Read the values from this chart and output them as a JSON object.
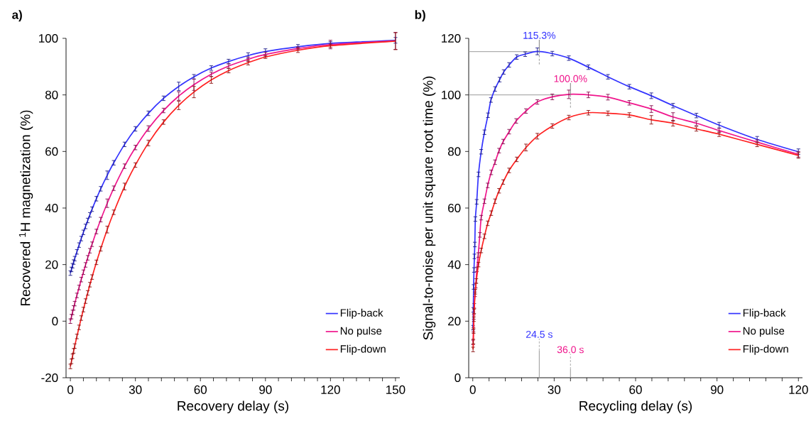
{
  "chart_data": [
    {
      "type": "line",
      "title": "a)",
      "xlabel": "Recovery delay (s)",
      "ylabel": "Recovered $^{1}$H magnetization (%)",
      "legend": "bottom right",
      "xlim": [
        -2,
        152
      ],
      "ylim": [
        -20,
        100
      ],
      "xticks": [
        0,
        {
          "value": 6,
          "label": null
        },
        {
          "value": 12,
          "label": null
        },
        {
          "value": 18,
          "label": null
        },
        {
          "value": 24,
          "label": null
        },
        30,
        {
          "value": 36,
          "label": null
        },
        {
          "value": 42,
          "label": null
        },
        {
          "value": 48,
          "label": null
        },
        {
          "value": 54,
          "label": null
        },
        60,
        {
          "value": 66,
          "label": null
        },
        {
          "value": 72,
          "label": null
        },
        {
          "value": 78,
          "label": null
        },
        {
          "value": 84,
          "label": null
        },
        90,
        {
          "value": 96,
          "label": null
        },
        {
          "value": 102,
          "label": null
        },
        {
          "value": 108,
          "label": null
        },
        {
          "value": 114,
          "label": null
        },
        120,
        {
          "value": 126,
          "label": null
        },
        {
          "value": 132,
          "label": null
        },
        {
          "value": 138,
          "label": null
        },
        {
          "value": 144,
          "label": null
        },
        150
      ],
      "yticks": [
        -20,
        0,
        20,
        40,
        60,
        80,
        100
      ],
      "series": [
        {
          "name": "Flip-back",
          "color": "#3333ff",
          "x": [
            0,
            0.5,
            1,
            1.5,
            2,
            3,
            4,
            5,
            6,
            7,
            8,
            9,
            10,
            12,
            14,
            17,
            20,
            25,
            30,
            36,
            43,
            50,
            57,
            65,
            73,
            82,
            90,
            105,
            120,
            150
          ],
          "values": [
            17.0,
            18.3,
            19.6,
            20.9,
            22.1,
            24.5,
            26.9,
            29.2,
            31.4,
            33.5,
            35.6,
            37.6,
            39.6,
            43.3,
            46.8,
            51.6,
            56.0,
            62.5,
            68.0,
            73.5,
            78.8,
            83.0,
            86.4,
            89.5,
            91.8,
            93.9,
            95.3,
            97.0,
            98.2,
            99.3
          ],
          "errors": [
            0.8,
            0.8,
            0.8,
            0.8,
            0.8,
            0.8,
            0.8,
            0.8,
            0.8,
            0.8,
            0.8,
            0.8,
            0.8,
            0.8,
            0.8,
            1.5,
            0.8,
            0.8,
            0.8,
            0.8,
            0.8,
            1.5,
            0.8,
            0.8,
            0.8,
            1.0,
            1.0,
            0.8,
            0.6,
            1.0
          ]
        },
        {
          "name": "No pulse",
          "color": "#f0158c",
          "x": [
            0,
            0.5,
            1,
            1.5,
            2,
            3,
            4,
            5,
            6,
            7,
            8,
            9,
            10,
            12,
            14,
            17,
            20,
            25,
            30,
            36,
            43,
            50,
            57,
            65,
            73,
            82,
            90,
            105,
            120,
            150
          ],
          "values": [
            0.0,
            1.6,
            3.1,
            4.7,
            6.2,
            9.1,
            11.9,
            14.7,
            17.3,
            19.9,
            22.4,
            24.9,
            27.2,
            31.7,
            35.9,
            41.7,
            47.0,
            54.8,
            61.4,
            68.1,
            74.5,
            79.6,
            83.6,
            87.3,
            90.2,
            92.6,
            94.3,
            96.4,
            97.8,
            99.1
          ],
          "errors": [
            0.8,
            0.8,
            0.8,
            0.8,
            0.8,
            0.8,
            0.8,
            0.8,
            0.8,
            0.8,
            0.8,
            0.8,
            0.8,
            0.8,
            0.8,
            1.5,
            0.8,
            0.8,
            0.8,
            1.0,
            0.8,
            1.5,
            2.0,
            0.8,
            0.8,
            0.8,
            0.8,
            0.6,
            1.5,
            3.0
          ]
        },
        {
          "name": "Flip-down",
          "color": "#ff2020",
          "x": [
            0,
            0.5,
            1,
            1.5,
            2,
            3,
            4,
            5,
            6,
            7,
            8,
            9,
            10,
            12,
            14,
            17,
            20,
            25,
            30,
            36,
            43,
            50,
            57,
            65,
            73,
            82,
            90,
            105,
            120,
            150
          ],
          "values": [
            -16.0,
            -14.2,
            -12.4,
            -10.5,
            -8.8,
            -5.4,
            -2.2,
            1.1,
            4.1,
            7.1,
            10.0,
            12.9,
            15.6,
            20.8,
            25.6,
            32.4,
            38.5,
            47.6,
            55.2,
            63.0,
            70.4,
            76.3,
            81.0,
            85.3,
            88.6,
            91.4,
            93.4,
            95.8,
            97.4,
            99.0
          ],
          "errors": [
            0.8,
            0.8,
            0.8,
            0.8,
            0.8,
            0.8,
            0.8,
            0.8,
            0.8,
            0.8,
            0.8,
            0.8,
            0.8,
            0.8,
            0.8,
            1.2,
            0.8,
            1.2,
            0.8,
            1.0,
            0.8,
            1.5,
            2.0,
            1.2,
            0.8,
            0.8,
            0.5,
            0.8,
            0.6,
            3.0
          ]
        }
      ]
    },
    {
      "type": "line",
      "title": "b)",
      "xlabel": "Recycling delay (s)",
      "ylabel": "Signal-to-noise per unit square root time (%)",
      "legend": "bottom right",
      "xlim": [
        -1.5,
        121.5
      ],
      "ylim": [
        0,
        120
      ],
      "xticks": [
        0,
        {
          "value": 6,
          "label": null
        },
        {
          "value": 12,
          "label": null
        },
        {
          "value": 18,
          "label": null
        },
        {
          "value": 24,
          "label": null
        },
        30,
        {
          "value": 36,
          "label": null
        },
        {
          "value": 42,
          "label": null
        },
        {
          "value": 48,
          "label": null
        },
        {
          "value": 54,
          "label": null
        },
        60,
        {
          "value": 66,
          "label": null
        },
        {
          "value": 72,
          "label": null
        },
        {
          "value": 78,
          "label": null
        },
        {
          "value": 84,
          "label": null
        },
        90,
        {
          "value": 96,
          "label": null
        },
        {
          "value": 102,
          "label": null
        },
        {
          "value": 108,
          "label": null
        },
        {
          "value": 114,
          "label": null
        },
        120
      ],
      "yticks": [
        0,
        20,
        40,
        60,
        80,
        100,
        120
      ],
      "annotations": [
        {
          "text": "115.3%",
          "x": 24.5,
          "y": 115.3
        },
        {
          "text": "100.0%",
          "x": 36.0,
          "y": 100.0
        }
      ],
      "ref_lines": [
        {
          "axis": "y",
          "value": 115.3,
          "color": "#999999"
        },
        {
          "axis": "y",
          "value": 100.0,
          "color": "#999999"
        },
        {
          "axis": "x",
          "value": 24.5,
          "label": "24.5 s",
          "color": "#999999"
        },
        {
          "axis": "x",
          "value": 36.0,
          "label": "36.0 s",
          "color": "#999999"
        }
      ],
      "series": [
        {
          "name": "Flip-back",
          "color": "#3333ff",
          "x": [
            0.1,
            0.2,
            0.3,
            0.45,
            0.6,
            0.75,
            0.95,
            1.45,
            2.1,
            3.1,
            4.3,
            5.6,
            6.7,
            8.2,
            9.9,
            11.4,
            13.4,
            16.2,
            19.3,
            23.8,
            29.3,
            35.4,
            42.6,
            49.8,
            57.7,
            65.8,
            73.8,
            82.4,
            90.8,
            104.8,
            120
          ],
          "values": [
            17.7,
            24.0,
            32.1,
            38.1,
            42.9,
            47.1,
            56.1,
            62.2,
            71.9,
            79.9,
            86.8,
            92.8,
            98.2,
            102.1,
            105.4,
            108.1,
            110.6,
            113.4,
            114.4,
            115.4,
            114.6,
            113.0,
            109.8,
            106.4,
            102.9,
            99.7,
            96.2,
            92.7,
            89.3,
            84.3,
            79.9
          ],
          "errors": [
            0.8,
            0.8,
            0.8,
            0.8,
            0.8,
            0.8,
            0.8,
            0.8,
            0.8,
            0.8,
            0.8,
            0.8,
            0.8,
            0.8,
            0.8,
            0.8,
            0.8,
            0.8,
            0.8,
            1.2,
            0.8,
            0.8,
            0.8,
            0.8,
            0.8,
            1.0,
            0.8,
            0.8,
            1.0,
            1.0,
            1.0
          ]
        },
        {
          "name": "No pulse",
          "color": "#f0158c",
          "x": [
            0.1,
            0.25,
            0.4,
            0.55,
            0.8,
            1.1,
            1.5,
            2.0,
            2.6,
            3.1,
            4.3,
            5.5,
            6.8,
            8.2,
            9.7,
            11.2,
            13.4,
            16.0,
            19.6,
            23.8,
            29.3,
            35.4,
            42.6,
            49.8,
            57.7,
            65.8,
            73.8,
            82.4,
            90.8,
            104.8,
            120
          ],
          "values": [
            12.5,
            17.0,
            21.5,
            25.4,
            29.5,
            32.6,
            38.3,
            43.4,
            50.5,
            56.6,
            62.4,
            68.0,
            72.6,
            76.2,
            80.3,
            83.5,
            87.0,
            90.8,
            94.3,
            97.5,
            99.3,
            100.2,
            100.0,
            99.2,
            97.2,
            95.0,
            92.2,
            90.0,
            87.4,
            83.3,
            79.0
          ],
          "errors": [
            0.8,
            0.8,
            0.8,
            0.8,
            0.8,
            0.8,
            0.8,
            0.8,
            0.8,
            0.8,
            0.8,
            0.8,
            0.8,
            0.8,
            0.8,
            0.8,
            0.8,
            0.8,
            0.8,
            0.8,
            1.0,
            1.5,
            1.0,
            1.0,
            0.8,
            1.2,
            1.5,
            0.8,
            0.8,
            0.8,
            1.0
          ]
        },
        {
          "name": "Flip-down",
          "color": "#ff2020",
          "x": [
            0.1,
            0.2,
            0.3,
            0.4,
            0.5,
            0.9,
            1.3,
            2.1,
            3.1,
            4.3,
            5.5,
            6.8,
            8.2,
            9.7,
            11.2,
            13.4,
            16.2,
            19.6,
            23.8,
            29.3,
            35.4,
            42.6,
            49.8,
            57.7,
            65.8,
            73.8,
            82.4,
            90.8,
            104.8,
            120
          ],
          "values": [
            10.0,
            12.8,
            16.5,
            20.7,
            23.5,
            30.4,
            34.2,
            40.0,
            45.0,
            50.0,
            54.6,
            58.2,
            62.4,
            66.1,
            69.2,
            73.3,
            77.2,
            81.4,
            85.4,
            89.0,
            92.0,
            93.7,
            93.5,
            92.9,
            91.2,
            90.0,
            88.0,
            86.1,
            82.5,
            78.6
          ],
          "errors": [
            0.8,
            0.8,
            0.8,
            0.8,
            0.8,
            0.8,
            0.8,
            0.8,
            0.8,
            0.8,
            0.8,
            0.8,
            0.8,
            0.8,
            0.8,
            0.8,
            0.8,
            1.2,
            1.0,
            0.8,
            0.8,
            0.8,
            0.8,
            0.8,
            1.5,
            1.0,
            0.8,
            0.8,
            0.8,
            1.0
          ]
        }
      ]
    }
  ]
}
